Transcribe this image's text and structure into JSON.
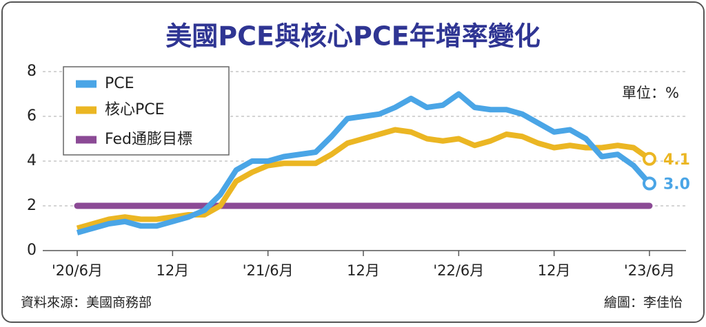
{
  "chart_data": {
    "type": "line",
    "title": "美國PCE與核心PCE年增率變化",
    "unit_label": "單位：%",
    "source": "資料來源：美國商務部",
    "credit": "繪圖：李佳怡",
    "categories": [
      "'20/6月",
      null,
      null,
      null,
      null,
      null,
      "12月",
      null,
      null,
      null,
      null,
      null,
      "'21/6月",
      null,
      null,
      null,
      null,
      null,
      "12月",
      null,
      null,
      null,
      null,
      null,
      "'22/6月",
      null,
      null,
      null,
      null,
      null,
      "12月",
      null,
      null,
      null,
      null,
      null,
      "'23/6月"
    ],
    "series": [
      {
        "name": "PCE",
        "color": "#4aa5e6",
        "values": [
          0.8,
          1.0,
          1.2,
          1.3,
          1.1,
          1.1,
          1.3,
          1.5,
          1.8,
          2.5,
          3.6,
          4.0,
          4.0,
          4.2,
          4.3,
          4.4,
          5.1,
          5.9,
          6.0,
          6.1,
          6.4,
          6.8,
          6.4,
          6.5,
          7.0,
          6.4,
          6.3,
          6.3,
          6.1,
          5.7,
          5.3,
          5.4,
          5.0,
          4.2,
          4.3,
          3.8,
          3
        ],
        "value_labels": [
          null,
          null,
          null,
          null,
          null,
          null,
          null,
          null,
          null,
          null,
          null,
          null,
          null,
          null,
          null,
          null,
          null,
          null,
          null,
          null,
          null,
          null,
          null,
          null,
          null,
          null,
          null,
          null,
          null,
          null,
          null,
          null,
          null,
          null,
          null,
          null,
          "3.0"
        ]
      },
      {
        "name": "核心PCE",
        "color": "#ebb623",
        "values": [
          1.0,
          1.2,
          1.4,
          1.5,
          1.4,
          1.4,
          1.5,
          1.6,
          1.6,
          2.0,
          3.1,
          3.5,
          3.8,
          3.9,
          3.9,
          3.9,
          4.3,
          4.8,
          5.0,
          5.2,
          5.4,
          5.3,
          5.0,
          4.9,
          5.0,
          4.7,
          4.9,
          5.2,
          5.1,
          4.8,
          4.6,
          4.7,
          4.6,
          4.6,
          4.7,
          4.6,
          4.1
        ],
        "value_labels": [
          null,
          null,
          null,
          null,
          null,
          null,
          null,
          null,
          null,
          null,
          null,
          null,
          null,
          null,
          null,
          null,
          null,
          null,
          null,
          null,
          null,
          null,
          null,
          null,
          null,
          null,
          null,
          null,
          null,
          null,
          null,
          null,
          null,
          null,
          null,
          null,
          "4.1"
        ]
      },
      {
        "name": "Fed通膨目標",
        "color": "#8b4a95",
        "values": [
          2,
          2,
          2,
          2,
          2,
          2,
          2,
          2,
          2,
          2,
          2,
          2,
          2,
          2,
          2,
          2,
          2,
          2,
          2,
          2,
          2,
          2,
          2,
          2,
          2,
          2,
          2,
          2,
          2,
          2,
          2,
          2,
          2,
          2,
          2,
          2,
          2
        ]
      }
    ],
    "ylim": [
      0,
      8
    ],
    "yticks": [
      0,
      2,
      4,
      6,
      8
    ],
    "grid": true,
    "legend": "top-left"
  }
}
